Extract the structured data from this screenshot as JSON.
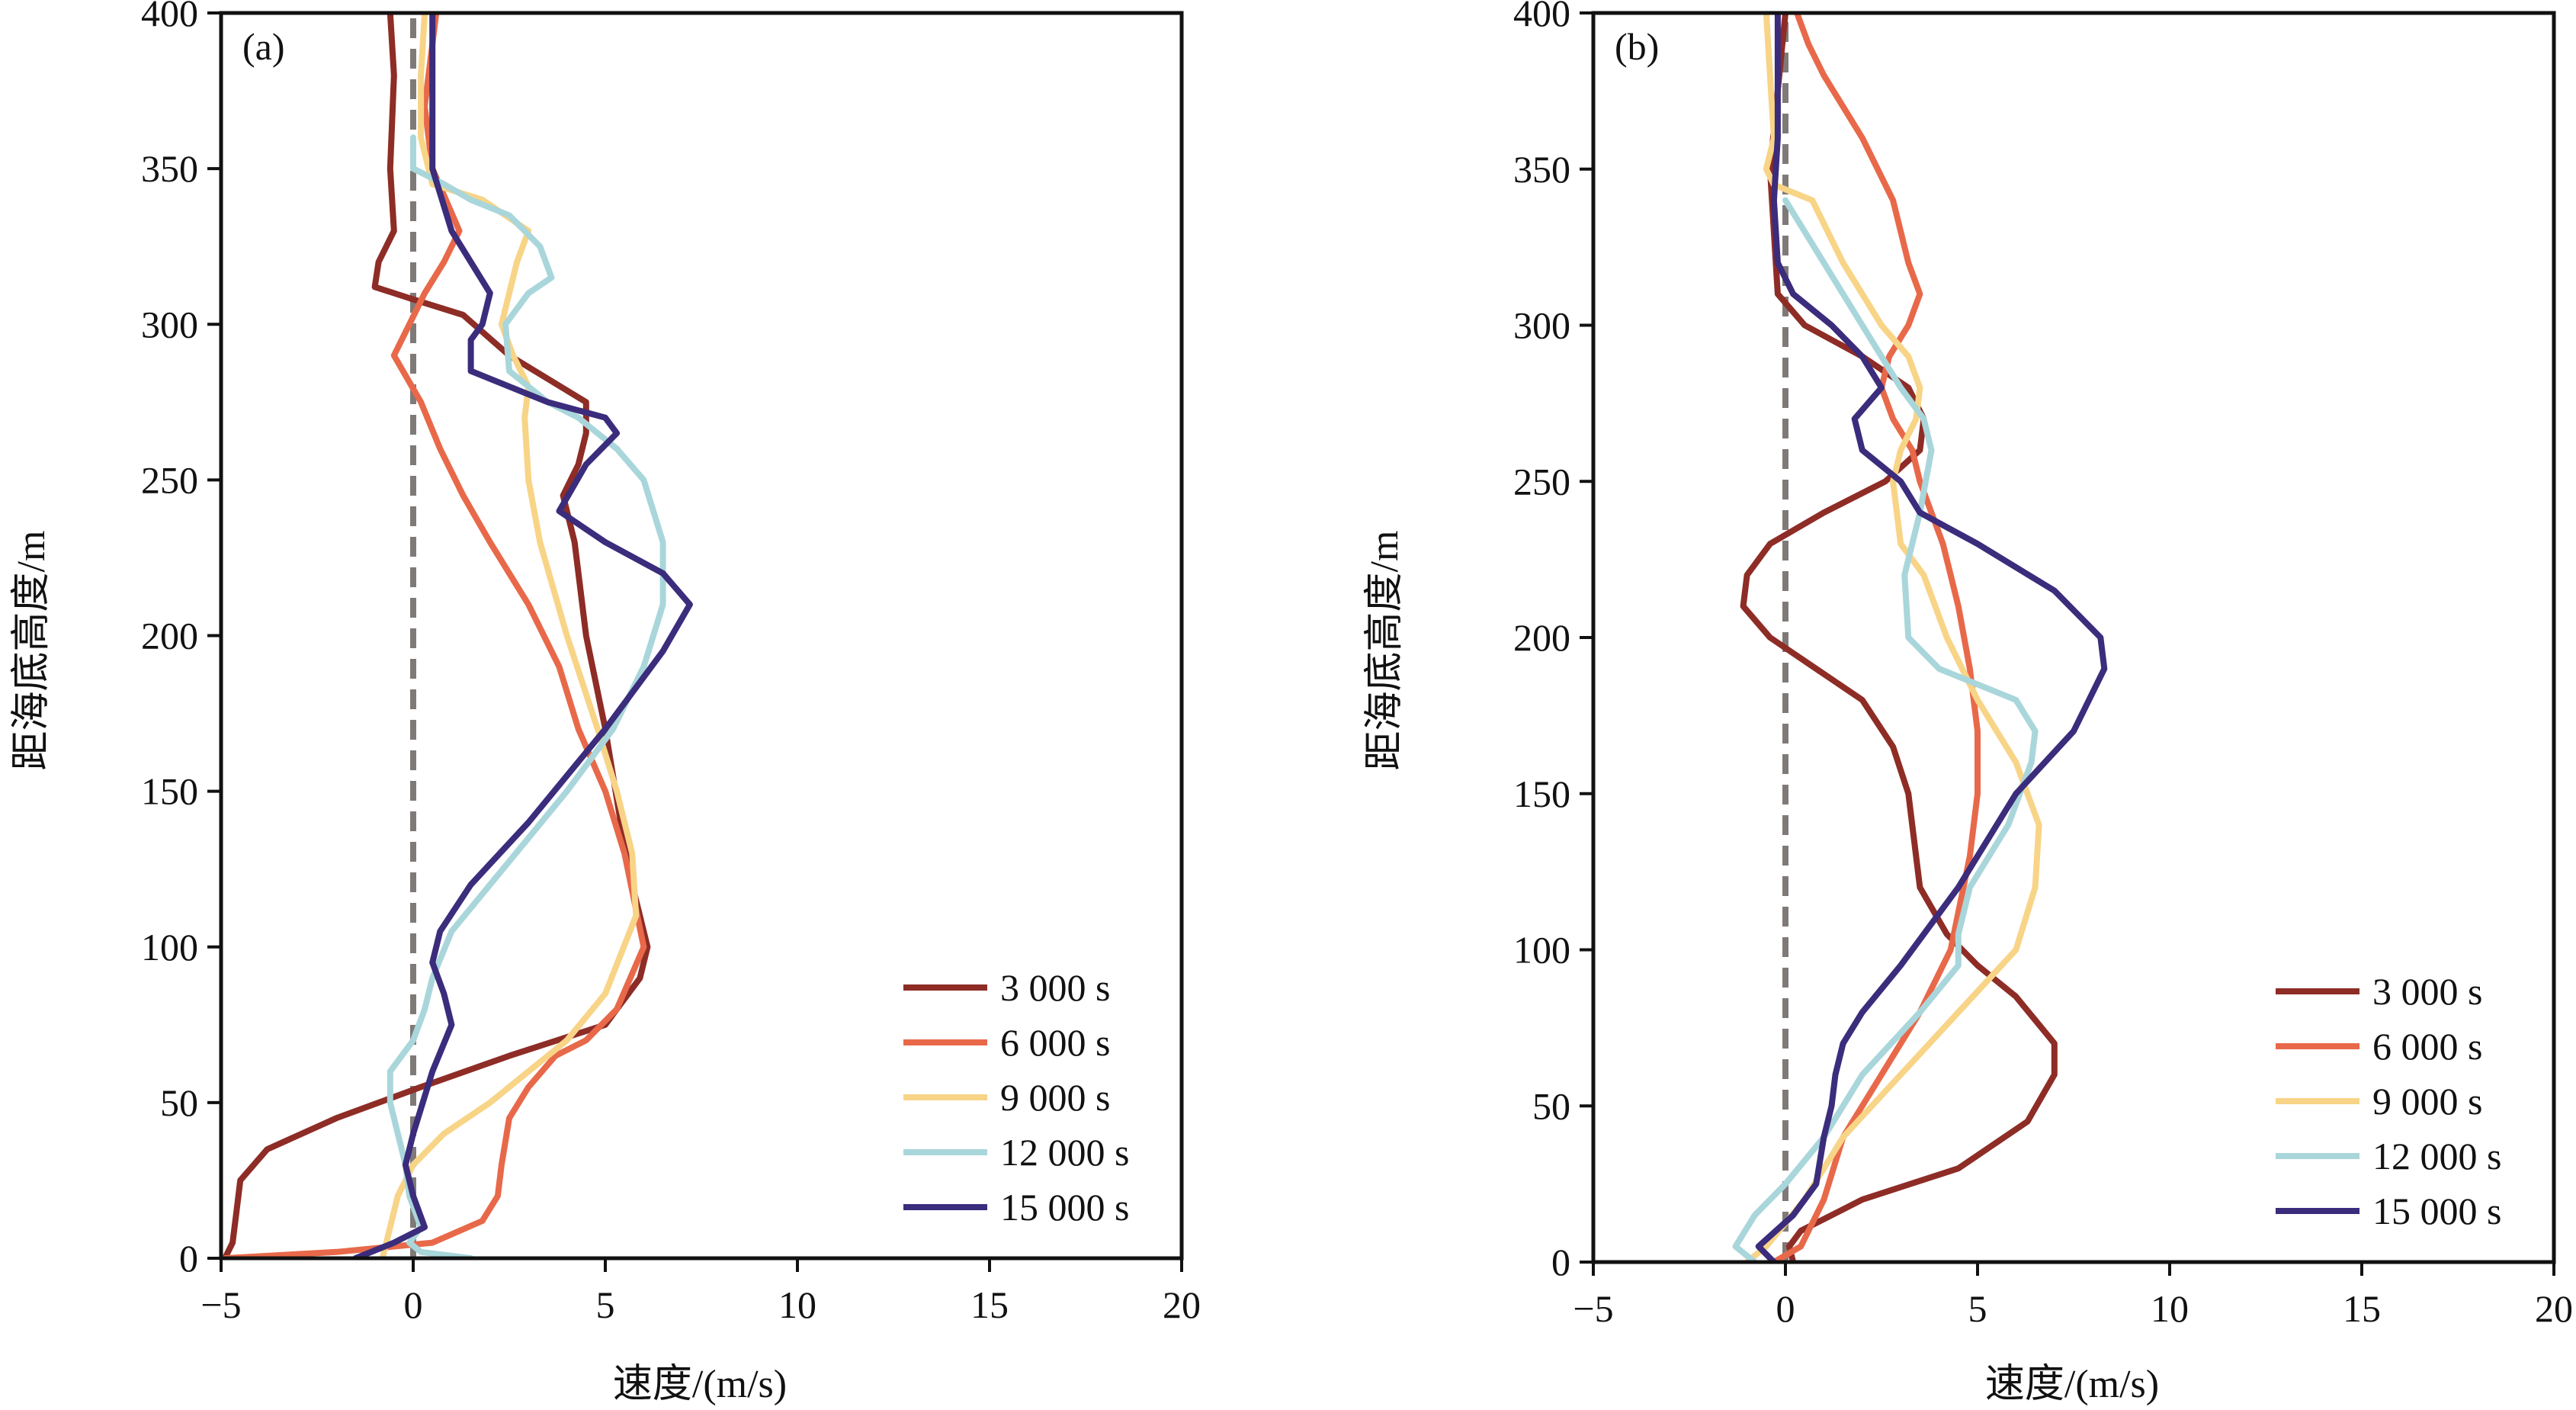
{
  "figure": {
    "colors": {
      "axis": "#111111",
      "zero_line": "#7f7a78",
      "series": [
        "#8e2c26",
        "#e8694a",
        "#f8d487",
        "#a9d6db",
        "#3b2c7c"
      ]
    },
    "legend_labels": [
      "3 000 s",
      "6 000 s",
      "9 000 s",
      "12 000 s",
      "15 000 s"
    ]
  },
  "chart_data": [
    {
      "type": "line",
      "panel_label": "(a)",
      "xlabel": "速度/(m/s)",
      "ylabel": "距海底高度/m",
      "xlim": [
        -5,
        20
      ],
      "ylim": [
        0,
        400
      ],
      "xticks": [
        -5,
        0,
        5,
        10,
        15,
        20
      ],
      "xtick_labels": [
        "−5",
        "0",
        "5",
        "10",
        "15",
        "20"
      ],
      "yticks": [
        0,
        50,
        100,
        150,
        200,
        250,
        300,
        350,
        400
      ],
      "ytick_labels": [
        "0",
        "50",
        "100",
        "150",
        "200",
        "250",
        "300",
        "350",
        "400"
      ],
      "grid": false,
      "legend_position": "lower-right",
      "zero_reference_line": "dashed vertical at x = 0",
      "series": [
        {
          "name": "3 000 s",
          "x": [
            -4.9,
            -4.7,
            -4.6,
            -4.5,
            -3.8,
            -2.0,
            0.2,
            2.5,
            5.0,
            5.9,
            6.1,
            5.7,
            5.4,
            5.0,
            4.5,
            4.2,
            3.9,
            4.3,
            4.5,
            4.5,
            2.5,
            1.3,
            0.0,
            -1.0,
            -0.9,
            -0.5,
            -0.6,
            -0.5,
            -0.6
          ],
          "y": [
            0,
            5,
            15,
            25,
            35,
            45,
            55,
            65,
            75,
            90,
            100,
            120,
            140,
            170,
            200,
            230,
            245,
            255,
            265,
            275,
            290,
            303,
            308,
            312,
            320,
            330,
            350,
            380,
            400
          ]
        },
        {
          "name": "6 000 s",
          "x": [
            -4.9,
            -2.0,
            0.5,
            1.8,
            2.2,
            2.3,
            2.5,
            3.0,
            3.7,
            4.5,
            5.3,
            6.0,
            5.5,
            5.0,
            4.3,
            3.8,
            3.0,
            2.0,
            1.3,
            0.7,
            0.2,
            -0.5,
            -0.1,
            0.3,
            0.8,
            1.2,
            0.5,
            0.3,
            0.5,
            0.6
          ],
          "y": [
            0,
            2,
            5,
            12,
            20,
            30,
            45,
            55,
            65,
            70,
            80,
            100,
            130,
            150,
            170,
            190,
            210,
            230,
            245,
            260,
            275,
            290,
            300,
            310,
            320,
            330,
            350,
            370,
            390,
            400
          ]
        },
        {
          "name": "9 000 s",
          "x": [
            -0.8,
            -0.6,
            -0.4,
            0.0,
            0.8,
            2.0,
            3.0,
            4.0,
            5.0,
            5.8,
            5.7,
            5.3,
            4.8,
            4.0,
            3.3,
            3.0,
            2.9,
            3.0,
            2.6,
            2.3,
            2.5,
            2.7,
            3.0,
            1.8,
            0.5,
            0.2,
            0.2,
            0.3
          ],
          "y": [
            0,
            10,
            20,
            30,
            40,
            50,
            60,
            70,
            85,
            110,
            130,
            150,
            170,
            200,
            230,
            250,
            270,
            280,
            290,
            300,
            310,
            320,
            330,
            340,
            345,
            360,
            380,
            400
          ]
        },
        {
          "name": "12 000 s",
          "x": [
            1.5,
            0.2,
            -0.1,
            0.2,
            -0.1,
            -0.2,
            -0.6,
            -0.6,
            0.0,
            0.3,
            0.5,
            1.0,
            2.0,
            3.0,
            4.0,
            5.2,
            6.0,
            6.5,
            6.5,
            6.0,
            5.3,
            4.3,
            3.5,
            2.5,
            2.4,
            3.0,
            3.6,
            3.3,
            2.5,
            1.5,
            0.8,
            0.0,
            0.0
          ],
          "y": [
            0,
            2,
            5,
            10,
            20,
            30,
            50,
            60,
            70,
            80,
            90,
            105,
            120,
            135,
            150,
            170,
            190,
            210,
            230,
            250,
            260,
            270,
            275,
            285,
            300,
            310,
            315,
            325,
            335,
            340,
            345,
            350,
            360
          ]
        },
        {
          "name": "15 000 s",
          "x": [
            -1.5,
            -0.5,
            0.3,
            0.0,
            -0.2,
            0.0,
            0.5,
            1.0,
            0.8,
            0.5,
            0.7,
            1.5,
            3.0,
            5.0,
            6.5,
            7.2,
            6.5,
            5.0,
            3.8,
            4.5,
            5.3,
            5.0,
            3.5,
            1.5,
            1.5,
            1.5,
            1.8,
            2.0,
            1.5,
            1.0,
            0.5,
            0.5,
            0.5
          ],
          "y": [
            0,
            5,
            10,
            20,
            30,
            40,
            60,
            75,
            85,
            95,
            105,
            120,
            140,
            170,
            195,
            210,
            220,
            230,
            240,
            255,
            265,
            270,
            275,
            285,
            290,
            295,
            300,
            310,
            320,
            330,
            350,
            380,
            400
          ]
        }
      ]
    },
    {
      "type": "line",
      "panel_label": "(b)",
      "xlabel": "速度/(m/s)",
      "ylabel": "距海底高度/m",
      "xlim": [
        -5,
        20
      ],
      "ylim": [
        0,
        400
      ],
      "xticks": [
        -5,
        0,
        5,
        10,
        15,
        20
      ],
      "xtick_labels": [
        "−5",
        "0",
        "5",
        "10",
        "15",
        "20"
      ],
      "yticks": [
        0,
        50,
        100,
        150,
        200,
        250,
        300,
        350,
        400
      ],
      "ytick_labels": [
        "0",
        "50",
        "100",
        "150",
        "200",
        "250",
        "300",
        "350",
        "400"
      ],
      "grid": false,
      "legend_position": "lower-right",
      "zero_reference_line": "dashed vertical at x = 0",
      "series": [
        {
          "name": "3 000 s",
          "x": [
            0.2,
            0.1,
            0.4,
            2.0,
            4.5,
            6.3,
            7.0,
            7.0,
            6.0,
            5.0,
            4.2,
            3.5,
            3.3,
            3.2,
            2.8,
            2.0,
            0.8,
            -0.4,
            -1.1,
            -1.0,
            -0.4,
            1.0,
            2.6,
            3.5,
            3.6,
            3.2,
            2.0,
            0.5,
            -0.2,
            -0.4,
            0.0
          ],
          "y": [
            0,
            5,
            10,
            20,
            30,
            45,
            60,
            70,
            85,
            95,
            105,
            120,
            140,
            150,
            165,
            180,
            190,
            200,
            210,
            220,
            230,
            240,
            250,
            260,
            270,
            280,
            290,
            300,
            310,
            350,
            400
          ]
        },
        {
          "name": "6 000 s",
          "x": [
            -0.3,
            0.4,
            1.0,
            1.5,
            2.5,
            3.5,
            4.3,
            4.8,
            5.0,
            5.0,
            4.8,
            4.5,
            4.3,
            4.1,
            3.8,
            3.5,
            3.3,
            2.8,
            2.5,
            2.7,
            3.2,
            3.5,
            3.2,
            2.8,
            2.0,
            1.0,
            0.6,
            0.3,
            0.3
          ],
          "y": [
            0,
            5,
            20,
            40,
            60,
            80,
            100,
            130,
            150,
            170,
            190,
            210,
            220,
            230,
            240,
            250,
            260,
            270,
            280,
            290,
            300,
            310,
            320,
            340,
            360,
            380,
            390,
            400,
            400
          ]
        },
        {
          "name": "9 000 s",
          "x": [
            -1.0,
            -0.5,
            0.5,
            1.5,
            3.0,
            4.5,
            6.0,
            6.5,
            6.6,
            6.0,
            5.0,
            4.2,
            3.6,
            3.0,
            2.8,
            3.0,
            3.4,
            3.5,
            3.2,
            2.5,
            1.5,
            0.7,
            -0.3,
            -0.5,
            -0.3,
            -0.4,
            -0.5
          ],
          "y": [
            0,
            5,
            20,
            40,
            60,
            80,
            100,
            120,
            140,
            160,
            180,
            200,
            220,
            230,
            250,
            260,
            270,
            280,
            290,
            300,
            320,
            340,
            345,
            350,
            360,
            380,
            400
          ]
        },
        {
          "name": "12 000 s",
          "x": [
            -0.8,
            -1.3,
            -0.8,
            0.0,
            1.0,
            2.0,
            3.5,
            4.5,
            4.5,
            4.8,
            5.8,
            6.4,
            6.5,
            6.0,
            4.0,
            3.2,
            3.1,
            3.5,
            3.8,
            3.6,
            3.0,
            2.0,
            1.0,
            0.0
          ],
          "y": [
            0,
            5,
            15,
            25,
            40,
            60,
            80,
            95,
            105,
            120,
            140,
            160,
            170,
            180,
            190,
            200,
            220,
            240,
            260,
            270,
            280,
            300,
            320,
            340
          ]
        },
        {
          "name": "15 000 s",
          "x": [
            -0.3,
            -0.7,
            0.2,
            0.8,
            1.0,
            1.2,
            1.3,
            1.5,
            2.0,
            3.0,
            4.5,
            6.0,
            7.5,
            8.3,
            8.2,
            7.0,
            5.0,
            3.5,
            3.0,
            2.0,
            1.8,
            2.5,
            2.0,
            1.2,
            0.2,
            -0.2,
            -0.3,
            -0.2,
            -0.2
          ],
          "y": [
            0,
            5,
            15,
            25,
            40,
            50,
            60,
            70,
            80,
            95,
            120,
            150,
            170,
            190,
            200,
            215,
            230,
            240,
            250,
            260,
            270,
            280,
            290,
            300,
            310,
            320,
            340,
            360,
            400
          ]
        }
      ]
    }
  ]
}
